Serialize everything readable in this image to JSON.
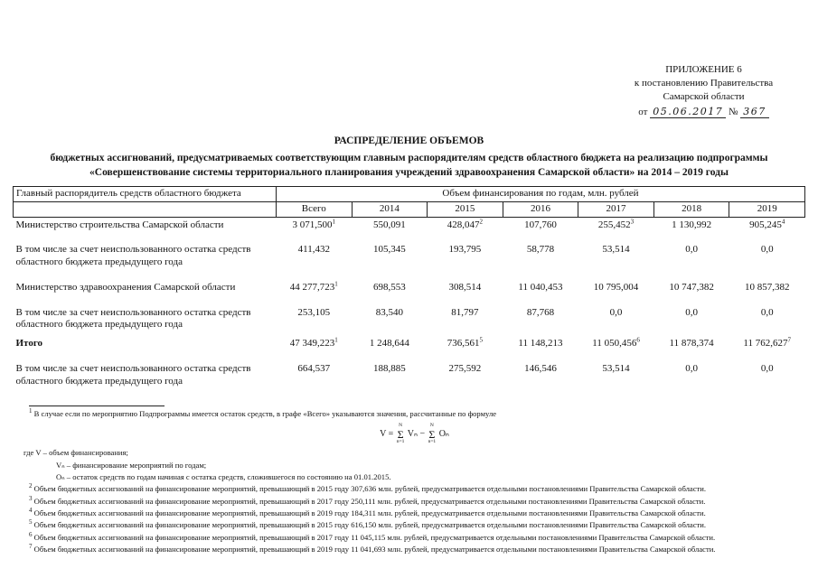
{
  "appendix": {
    "line1": "ПРИЛОЖЕНИЕ 6",
    "line2": "к постановлению Правительства",
    "line3": "Самарской области",
    "date_prefix": "от",
    "date": "05.06.2017",
    "number_sign": "№",
    "number": "367"
  },
  "title": {
    "line1": "РАСПРЕДЕЛЕНИЕ ОБЪЕМОВ",
    "line2": "бюджетных ассигнований, предусматриваемых соответствующим главным распорядителям средств областного бюджета на реализацию подпрограммы",
    "line3": "«Совершенствование системы территориального планирования учреждений здравоохранения Самарской области» на 2014 – 2019 годы"
  },
  "table": {
    "col1_header": "Главный распорядитель средств областного бюджета",
    "span_header": "Объем финансирования по годам, млн. рублей",
    "year_headers": [
      "Всего",
      "2014",
      "2015",
      "2016",
      "2017",
      "2018",
      "2019"
    ],
    "rows": [
      {
        "label": "Министерство строительства Самарской области",
        "gap": false,
        "bold": false,
        "cells": [
          {
            "v": "3 071,500",
            "s": "1"
          },
          {
            "v": "550,091"
          },
          {
            "v": "428,047",
            "s": "2"
          },
          {
            "v": "107,760"
          },
          {
            "v": "255,452",
            "s": "3"
          },
          {
            "v": "1 130,992"
          },
          {
            "v": "905,245",
            "s": "4"
          }
        ]
      },
      {
        "label": "В том числе за счет неиспользованного остатка средств областного бюджета предыдущего года",
        "gap": true,
        "bold": false,
        "cells": [
          {
            "v": "411,432"
          },
          {
            "v": "105,345"
          },
          {
            "v": "193,795"
          },
          {
            "v": "58,778"
          },
          {
            "v": "53,514"
          },
          {
            "v": "0,0"
          },
          {
            "v": "0,0"
          }
        ]
      },
      {
        "label": "Министерство здравоохранения Самарской области",
        "gap": true,
        "bold": false,
        "cells": [
          {
            "v": "44 277,723",
            "s": "1"
          },
          {
            "v": "698,553"
          },
          {
            "v": "308,514"
          },
          {
            "v": "11 040,453"
          },
          {
            "v": "10 795,004"
          },
          {
            "v": "10 747,382"
          },
          {
            "v": "10 857,382"
          }
        ]
      },
      {
        "label": "В том числе за счет неиспользованного остатка средств областного бюджета предыдущего года",
        "gap": true,
        "bold": false,
        "cells": [
          {
            "v": "253,105"
          },
          {
            "v": "83,540"
          },
          {
            "v": "81,797"
          },
          {
            "v": "87,768"
          },
          {
            "v": "0,0"
          },
          {
            "v": "0,0"
          },
          {
            "v": "0,0"
          }
        ]
      },
      {
        "label": "Итого",
        "gap": false,
        "bold": true,
        "cells": [
          {
            "v": "47 349,223",
            "s": "1"
          },
          {
            "v": "1 248,644"
          },
          {
            "v": "736,561",
            "s": "5"
          },
          {
            "v": "11 148,213"
          },
          {
            "v": "11 050,456",
            "s": "6"
          },
          {
            "v": "11 878,374"
          },
          {
            "v": "11 762,627",
            "s": "7"
          }
        ]
      },
      {
        "label": "В том числе за счет неиспользованного остатка средств областного бюджета предыдущего года",
        "gap": true,
        "bold": false,
        "cells": [
          {
            "v": "664,537"
          },
          {
            "v": "188,885"
          },
          {
            "v": "275,592"
          },
          {
            "v": "146,546"
          },
          {
            "v": "53,514"
          },
          {
            "v": "0,0"
          },
          {
            "v": "0,0"
          }
        ]
      }
    ]
  },
  "footnotes": {
    "f1_marker": "1",
    "f1": "В случае если по мероприятию Подпрограммы имеется остаток средств, в графе «Всего» указываются значения, рассчитанные по формуле",
    "formula": {
      "lhs": "V =",
      "sum": "Σ",
      "top": "N",
      "bottom": "n=1",
      "term1": "Vₙ",
      "minus": "−",
      "term2": "Oₙ"
    },
    "where_lines": [
      "где V – объем финансирования;",
      "Vₙ – финансирование мероприятий по годам;",
      "Oₙ – остаток средств по годам начиная с остатка средств, сложившегося по состоянию на 01.01.2015."
    ],
    "items": [
      {
        "n": "2",
        "text": "Объем бюджетных ассигнований на финансирование мероприятий, превышающий в 2015 году 307,636 млн. рублей, предусматривается отдельными постановлениями Правительства Самарской области."
      },
      {
        "n": "3",
        "text": "Объем бюджетных ассигнований на финансирование мероприятий, превышающий в 2017 году 250,111 млн. рублей, предусматривается отдельными постановлениями Правительства Самарской области."
      },
      {
        "n": "4",
        "text": "Объем бюджетных ассигнований на финансирование мероприятий, превышающий в 2019 году 184,311 млн. рублей, предусматривается отдельными постановлениями Правительства Самарской области."
      },
      {
        "n": "5",
        "text": "Объем бюджетных ассигнований на финансирование мероприятий, превышающий в 2015 году 616,150 млн. рублей, предусматривается отдельными постановлениями Правительства Самарской области."
      },
      {
        "n": "6",
        "text": "Объем бюджетных ассигнований на финансирование мероприятий, превышающий в 2017 году 11 045,115 млн. рублей, предусматривается отдельными постановлениями Правительства Самарской области."
      },
      {
        "n": "7",
        "text": "Объем бюджетных ассигнований на финансирование мероприятий, превышающий в 2019 году 11 041,693 млн. рублей, предусматривается отдельными постановлениями Правительства Самарской области."
      }
    ]
  }
}
